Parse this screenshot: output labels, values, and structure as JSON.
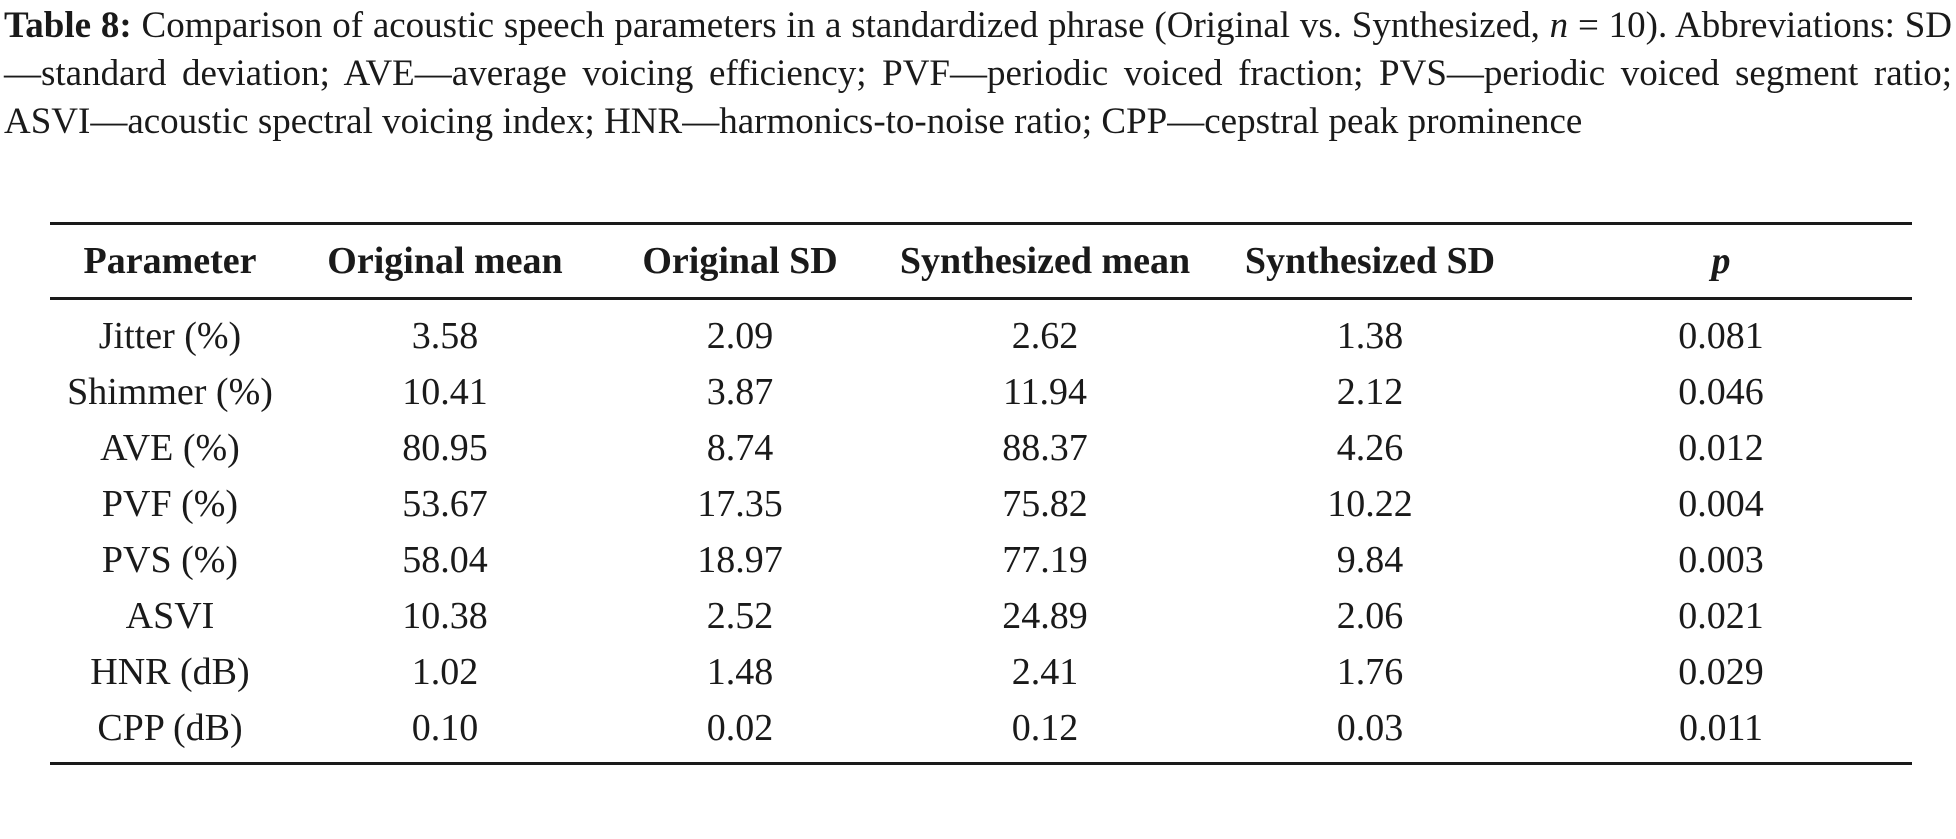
{
  "caption": {
    "label": "Table 8:",
    "text_before_n": " Comparison of acoustic speech parameters in a standardized phrase (Original vs. Synthesized, ",
    "n_symbol": "n",
    "text_after_n": " = 10). Abbreviations: SD—standard deviation; AVE—average voicing efficiency; PVF—periodic voiced fraction; PVS—periodic voiced segment ratio; ASVI—acoustic spectral voicing index; HNR—harmonics-to-noise ratio; CPP—cepstral peak prominence"
  },
  "table": {
    "headers": [
      "Parameter",
      "Original mean",
      "Original SD",
      "Synthesized mean",
      "Synthesized SD",
      "p"
    ],
    "rows": [
      [
        "Jitter (%)",
        "3.58",
        "2.09",
        "2.62",
        "1.38",
        "0.081"
      ],
      [
        "Shimmer (%)",
        "10.41",
        "3.87",
        "11.94",
        "2.12",
        "0.046"
      ],
      [
        "AVE (%)",
        "80.95",
        "8.74",
        "88.37",
        "4.26",
        "0.012"
      ],
      [
        "PVF (%)",
        "53.67",
        "17.35",
        "75.82",
        "10.22",
        "0.004"
      ],
      [
        "PVS (%)",
        "58.04",
        "18.97",
        "77.19",
        "9.84",
        "0.003"
      ],
      [
        "ASVI",
        "10.38",
        "2.52",
        "24.89",
        "2.06",
        "0.021"
      ],
      [
        "HNR (dB)",
        "1.02",
        "1.48",
        "2.41",
        "1.76",
        "0.029"
      ],
      [
        "CPP (dB)",
        "0.10",
        "0.02",
        "0.12",
        "0.03",
        "0.011"
      ]
    ]
  }
}
